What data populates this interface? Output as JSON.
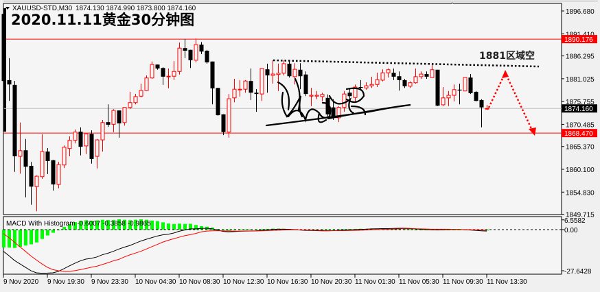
{
  "header": {
    "symbol_info": "XAUUSD-STD,M30",
    "ohlc": "1874.130 1874.990 1873.800 1874.160",
    "title": "2020.11.11黄金30分钟图"
  },
  "annotation": {
    "zone_label": "1881区域空",
    "colors": {
      "resistance_dotted": "#000000",
      "arrow": "#ff0000"
    }
  },
  "levels": {
    "upper_red": {
      "value": 1890.176,
      "label": "1890.176",
      "color": "#ff0000"
    },
    "lower_red": {
      "value": 1868.47,
      "label": "1868.470",
      "color": "#ff0000"
    },
    "current": {
      "value": 1874.16,
      "label": "1874.160",
      "color": "#000000"
    }
  },
  "price_axis": {
    "ticks": [
      "1896.680",
      "1891.410",
      "1886.295",
      "1881.025",
      "1875.755",
      "1870.485",
      "1865.370",
      "1860.100",
      "1854.830",
      "1849.715"
    ]
  },
  "macd_panel": {
    "label": "MACD With Histogram -0.6007 -0.3858 -0.9865",
    "ticks": [
      "6.5582",
      "0.00",
      "-27.6428"
    ],
    "colors": {
      "histogram": "#00ff00",
      "macd": "#000000",
      "signal": "#ff0000"
    }
  },
  "time_axis": {
    "labels": [
      "9 Nov 2020",
      "9 Nov 19:30",
      "9 Nov 23:30",
      "10 Nov 04:30",
      "10 Nov 08:30",
      "10 Nov 12:30",
      "10 Nov 16:30",
      "10 Nov 20:30",
      "11 Nov 01:30",
      "11 Nov 05:30",
      "11 Nov 09:30",
      "11 Nov 13:30"
    ]
  },
  "chart_data": {
    "type": "candlestick",
    "symbol": "XAUUSD-STD",
    "timeframe": "M30",
    "ylim": [
      1849.715,
      1896.68
    ],
    "colors": {
      "bull": "#ff0000",
      "bear": "#000000"
    },
    "ohlc": [
      [
        1896.0,
        1896.0,
        1868.8,
        1880.5
      ],
      [
        1880.7,
        1885.8,
        1875.9,
        1879.7
      ],
      [
        1879.6,
        1880.5,
        1859.5,
        1863.1
      ],
      [
        1863.1,
        1870.9,
        1859.1,
        1864.4
      ],
      [
        1864.5,
        1867.1,
        1853.6,
        1860.7
      ],
      [
        1860.9,
        1861.8,
        1851.9,
        1856.1
      ],
      [
        1856.1,
        1858.7,
        1850.4,
        1858.5
      ],
      [
        1858.4,
        1868.2,
        1857.9,
        1864.2
      ],
      [
        1864.2,
        1865.0,
        1859.0,
        1862.0
      ],
      [
        1862.2,
        1862.3,
        1855.2,
        1856.6
      ],
      [
        1856.6,
        1861.8,
        1855.7,
        1861.2
      ],
      [
        1861.1,
        1865.6,
        1860.4,
        1865.2
      ],
      [
        1864.9,
        1867.7,
        1863.1,
        1866.8
      ],
      [
        1866.8,
        1869.3,
        1866.1,
        1868.7
      ],
      [
        1868.8,
        1869.8,
        1863.3,
        1865.3
      ],
      [
        1865.5,
        1868.3,
        1863.6,
        1868.3
      ],
      [
        1868.3,
        1869.1,
        1861.4,
        1862.5
      ],
      [
        1863.1,
        1867.1,
        1860.3,
        1866.9
      ],
      [
        1866.9,
        1871.5,
        1864.2,
        1870.9
      ],
      [
        1871.0,
        1875.1,
        1869.9,
        1870.4
      ],
      [
        1870.5,
        1874.0,
        1868.7,
        1873.7
      ],
      [
        1873.7,
        1873.7,
        1867.4,
        1870.7
      ],
      [
        1870.9,
        1874.4,
        1870.2,
        1874.4
      ],
      [
        1874.4,
        1878.0,
        1874.0,
        1875.5
      ],
      [
        1875.5,
        1877.5,
        1875.1,
        1876.9
      ],
      [
        1877.0,
        1879.9,
        1876.7,
        1878.3
      ],
      [
        1878.3,
        1881.8,
        1878.2,
        1881.2
      ],
      [
        1881.2,
        1885.0,
        1881.0,
        1884.3
      ],
      [
        1884.3,
        1884.3,
        1883.1,
        1883.4
      ],
      [
        1883.5,
        1883.7,
        1879.6,
        1881.5
      ],
      [
        1881.5,
        1883.4,
        1878.8,
        1881.6
      ],
      [
        1881.6,
        1885.1,
        1880.7,
        1882.7
      ],
      [
        1882.7,
        1889.4,
        1882.0,
        1888.1
      ],
      [
        1888.1,
        1890.2,
        1885.8,
        1887.5
      ],
      [
        1887.7,
        1887.7,
        1883.5,
        1885.3
      ],
      [
        1885.3,
        1890.3,
        1884.8,
        1888.9
      ],
      [
        1888.9,
        1889.5,
        1886.7,
        1887.3
      ],
      [
        1887.5,
        1887.7,
        1884.5,
        1884.8
      ],
      [
        1885.0,
        1885.0,
        1875.1,
        1878.8
      ],
      [
        1878.9,
        1878.9,
        1872.5,
        1872.6
      ],
      [
        1872.8,
        1872.8,
        1868.0,
        1868.7
      ],
      [
        1868.7,
        1877.5,
        1867.4,
        1876.4
      ],
      [
        1876.6,
        1881.0,
        1875.6,
        1878.6
      ],
      [
        1878.5,
        1880.7,
        1876.9,
        1878.6
      ],
      [
        1878.6,
        1880.7,
        1877.8,
        1880.5
      ],
      [
        1880.5,
        1883.4,
        1876.1,
        1877.8
      ],
      [
        1877.8,
        1878.6,
        1873.4,
        1877.5
      ],
      [
        1877.5,
        1883.5,
        1875.9,
        1883.4
      ],
      [
        1883.2,
        1884.5,
        1877.8,
        1881.8
      ],
      [
        1881.8,
        1885.3,
        1879.9,
        1882.1
      ],
      [
        1882.0,
        1884.5,
        1878.2,
        1882.3
      ],
      [
        1882.3,
        1885.3,
        1881.8,
        1884.5
      ],
      [
        1884.5,
        1885.3,
        1881.3,
        1881.6
      ],
      [
        1881.5,
        1884.6,
        1879.7,
        1883.2
      ],
      [
        1883.1,
        1884.6,
        1878.6,
        1881.6
      ],
      [
        1882.0,
        1882.7,
        1877.0,
        1877.5
      ],
      [
        1877.0,
        1878.9,
        1874.7,
        1877.2
      ],
      [
        1877.0,
        1878.2,
        1876.3,
        1877.2
      ],
      [
        1876.9,
        1877.8,
        1875.8,
        1877.4
      ],
      [
        1876.6,
        1877.4,
        1872.0,
        1872.8
      ],
      [
        1874.4,
        1876.3,
        1871.5,
        1872.0
      ],
      [
        1872.0,
        1874.7,
        1871.0,
        1874.4
      ],
      [
        1874.4,
        1878.2,
        1873.4,
        1877.5
      ],
      [
        1877.8,
        1878.9,
        1875.8,
        1877.0
      ],
      [
        1876.7,
        1879.7,
        1875.5,
        1879.1
      ],
      [
        1879.1,
        1880.7,
        1878.3,
        1878.9
      ],
      [
        1878.9,
        1880.2,
        1878.5,
        1879.4
      ],
      [
        1879.4,
        1881.5,
        1878.9,
        1879.7
      ],
      [
        1879.7,
        1882.4,
        1879.1,
        1880.8
      ],
      [
        1880.7,
        1883.2,
        1880.4,
        1882.4
      ],
      [
        1882.4,
        1883.4,
        1881.3,
        1883.1
      ],
      [
        1882.4,
        1883.4,
        1880.7,
        1881.5
      ],
      [
        1881.6,
        1882.7,
        1878.3,
        1880.7
      ],
      [
        1880.7,
        1881.0,
        1878.9,
        1879.3
      ],
      [
        1879.3,
        1880.4,
        1878.9,
        1880.1
      ],
      [
        1880.1,
        1883.4,
        1879.9,
        1881.5
      ],
      [
        1881.5,
        1882.7,
        1881.0,
        1882.1
      ],
      [
        1882.1,
        1882.7,
        1881.0,
        1881.5
      ],
      [
        1881.3,
        1884.5,
        1881.3,
        1883.1
      ],
      [
        1883.1,
        1883.1,
        1874.7,
        1874.8
      ],
      [
        1875.0,
        1879.1,
        1874.7,
        1876.6
      ],
      [
        1876.6,
        1878.2,
        1874.7,
        1877.2
      ],
      [
        1877.2,
        1879.7,
        1875.8,
        1878.5
      ],
      [
        1878.5,
        1879.9,
        1875.1,
        1878.3
      ],
      [
        1878.2,
        1881.3,
        1878.2,
        1881.3
      ],
      [
        1881.3,
        1882.1,
        1877.5,
        1877.7
      ],
      [
        1878.0,
        1878.2,
        1875.8,
        1875.9
      ],
      [
        1876.1,
        1876.3,
        1869.8,
        1874.4
      ],
      [
        1874.13,
        1874.99,
        1873.8,
        1874.16
      ]
    ],
    "macd": {
      "ylim": [
        -27.6428,
        6.5582
      ],
      "macd": [
        -14.6,
        -17.5,
        -20.7,
        -23.0,
        -25.3,
        -27.6,
        -29.0,
        -29.3,
        -29.2,
        -29.0,
        -28.1,
        -26.3,
        -24.4,
        -22.6,
        -21.0,
        -19.8,
        -19.3,
        -18.4,
        -16.9,
        -15.9,
        -14.6,
        -13.1,
        -11.8,
        -10.7,
        -9.2,
        -7.7,
        -6.5,
        -5.4,
        -4.3,
        -3.5,
        -3.1,
        -2.3,
        -1.1,
        -0.3,
        0.5,
        0.5,
        0.8,
        0.9,
        0.6,
        -0.3,
        -1.2,
        -1.5,
        -1.3,
        -1.1,
        -1.0,
        -0.9,
        -0.8,
        -0.5,
        -0.2,
        0.2,
        0.3,
        0.3,
        0.2,
        0.0,
        -0.3,
        -0.5,
        -0.6,
        -0.7,
        -0.8,
        -0.8,
        -0.7,
        -0.5,
        -0.4,
        -0.2,
        0.0,
        0.2,
        0.3,
        0.5,
        0.6,
        0.7,
        0.7,
        0.8,
        0.9,
        0.9,
        0.8,
        0.5,
        0.2,
        0.0,
        -0.1,
        -0.2,
        -0.1,
        0.0,
        0.1,
        0.1,
        -0.1,
        -0.3,
        -0.5,
        -0.8,
        -0.99
      ],
      "signal": [
        -2.6,
        -5.4,
        -8.4,
        -11.5,
        -14.6,
        -17.7,
        -20.4,
        -23.0,
        -25.3,
        -26.9,
        -27.6,
        -28.1,
        -28.1,
        -27.6,
        -26.9,
        -26.1,
        -25.3,
        -24.6,
        -23.5,
        -22.3,
        -21.0,
        -20.0,
        -18.4,
        -17.0,
        -15.8,
        -14.6,
        -13.1,
        -11.5,
        -10.0,
        -8.4,
        -7.2,
        -6.1,
        -5.1,
        -4.1,
        -3.4,
        -2.6,
        -1.5,
        -1.0,
        -0.8,
        -0.7,
        -0.8,
        -0.9,
        -1.0,
        -1.0,
        -1.0,
        -1.0,
        -0.9,
        -0.8,
        -0.7,
        -0.5,
        -0.4,
        -0.3,
        -0.2,
        -0.2,
        -0.2,
        -0.3,
        -0.4,
        -0.5,
        -0.6,
        -0.7,
        -0.7,
        -0.7,
        -0.7,
        -0.6,
        -0.5,
        -0.4,
        -0.3,
        -0.1,
        0.0,
        0.2,
        0.3,
        0.4,
        0.5,
        0.6,
        0.6,
        0.6,
        0.5,
        0.4,
        0.3,
        0.3,
        0.3,
        0.3,
        0.2,
        0.1,
        0.0,
        -0.1,
        -0.2,
        -0.3,
        -0.39
      ]
    }
  }
}
